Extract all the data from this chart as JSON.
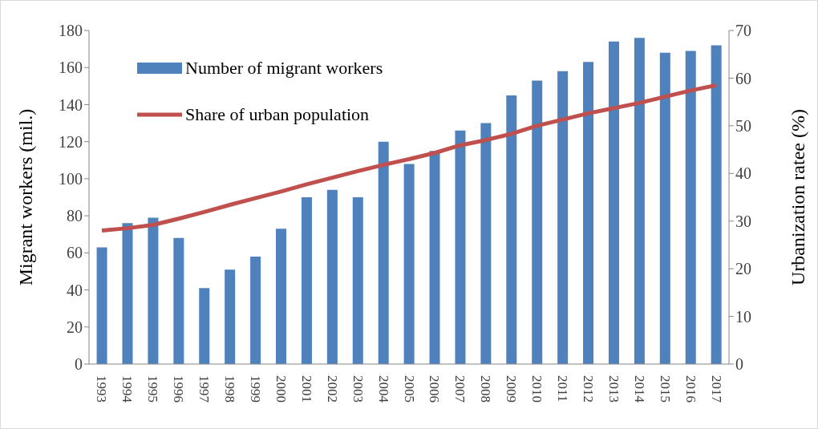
{
  "chart_data": {
    "type": "bar",
    "xlabel": null,
    "ylabel": "Migrant workers (mil.)",
    "y2label": "Urbanization ratee (%)",
    "categories": [
      "1993",
      "1994",
      "1995",
      "1996",
      "1997",
      "1998",
      "1999",
      "2000",
      "2001",
      "2002",
      "2003",
      "2004",
      "2005",
      "2006",
      "2007",
      "2008",
      "2009",
      "2010",
      "2011",
      "2012",
      "2013",
      "2014",
      "2015",
      "2016",
      "2017"
    ],
    "series": [
      {
        "name": "Number of migrant workers",
        "color": "#4f81bd",
        "values": [
          63,
          76,
          79,
          68,
          41,
          51,
          58,
          73,
          90,
          94,
          90,
          120,
          108,
          115,
          126,
          130,
          145,
          153,
          158,
          163,
          174,
          176,
          168,
          169,
          172
        ]
      },
      {
        "name": "Share of urban population",
        "type": "line",
        "axis": "y2",
        "color": "#c0504d",
        "values": [
          28,
          28.5,
          29.2,
          30.5,
          31.9,
          33.4,
          34.8,
          36.2,
          37.7,
          39.1,
          40.5,
          41.8,
          43,
          44.3,
          45.9,
          47,
          48.3,
          50,
          51.3,
          52.6,
          53.7,
          54.8,
          56.1,
          57.4,
          58.5
        ]
      }
    ],
    "ylim": [
      0,
      180
    ],
    "yticks": [
      0,
      20,
      40,
      60,
      80,
      100,
      120,
      140,
      160,
      180
    ],
    "y2lim": [
      0,
      70
    ],
    "y2ticks": [
      0,
      10,
      20,
      30,
      40,
      50,
      60,
      70
    ],
    "legend": "top left",
    "marker": "none",
    "line_style": "solid"
  }
}
